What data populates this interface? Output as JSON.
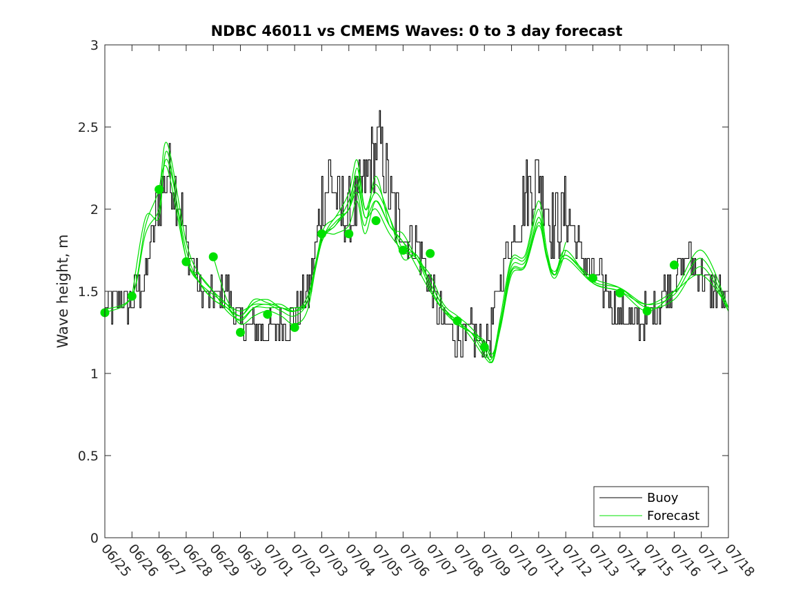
{
  "chart_data": {
    "type": "line",
    "title": "NDBC 46011 vs CMEMS Waves: 0 to 3 day forecast",
    "xlabel": "",
    "ylabel": "Wave height, m",
    "xlim": [
      0,
      23
    ],
    "ylim": [
      0,
      3
    ],
    "yticks": [
      0,
      0.5,
      1,
      1.5,
      2,
      2.5,
      3
    ],
    "ytick_labels": [
      "0",
      "0.5",
      "1",
      "1.5",
      "2",
      "2.5",
      "3"
    ],
    "xtick_labels": [
      "06/25",
      "06/26",
      "06/27",
      "06/28",
      "06/29",
      "06/30",
      "07/01",
      "07/02",
      "07/03",
      "07/04",
      "07/05",
      "07/06",
      "07/07",
      "07/08",
      "07/09",
      "07/10",
      "07/11",
      "07/12",
      "07/13",
      "07/14",
      "07/15",
      "07/16",
      "07/17",
      "07/18"
    ],
    "grid": false,
    "legend": {
      "placement": "bottom-right",
      "entries": [
        "Buoy",
        "Forecast"
      ]
    },
    "colors": {
      "buoy": "#000000",
      "forecast": "#00e000",
      "axis": "#262626"
    },
    "buoy": {
      "name": "Buoy",
      "x": [
        0,
        0.5,
        1,
        1.5,
        2,
        2.3,
        2.6,
        3,
        3.5,
        4,
        4.5,
        5,
        5.5,
        6,
        6.5,
        7,
        7.5,
        8,
        8.3,
        8.6,
        9,
        9.5,
        10,
        10.3,
        10.6,
        11,
        11.5,
        12,
        12.5,
        13,
        13.5,
        14,
        14.3,
        14.6,
        15,
        15.5,
        16,
        16.3,
        16.6,
        17,
        17.5,
        18,
        18.5,
        19,
        19.5,
        20,
        20.5,
        21,
        21.5,
        22,
        22.5,
        23
      ],
      "y": [
        1.4,
        1.45,
        1.42,
        1.6,
        2.1,
        2.2,
        2.15,
        1.8,
        1.5,
        1.45,
        1.5,
        1.3,
        1.3,
        1.25,
        1.3,
        1.35,
        1.5,
        2.05,
        2.2,
        2.0,
        1.95,
        2.1,
        2.4,
        2.3,
        2.0,
        1.85,
        1.8,
        1.5,
        1.3,
        1.2,
        1.25,
        1.15,
        1.3,
        1.6,
        1.8,
        2.1,
        2.2,
        2.0,
        1.9,
        2.0,
        1.75,
        1.6,
        1.5,
        1.35,
        1.3,
        1.35,
        1.45,
        1.6,
        1.7,
        1.6,
        1.5,
        1.4
      ]
    },
    "forecast_runs": [
      {
        "x": [
          0,
          1,
          1.5,
          2,
          2.3,
          3,
          3.5,
          4,
          4.5,
          5,
          5.5,
          6,
          6.5,
          7,
          7.5,
          8,
          8.5,
          9,
          9.3,
          9.6,
          10,
          10.5,
          11,
          11.5,
          12,
          12.5,
          13,
          13.5,
          14,
          14.3,
          14.6,
          15,
          15.5,
          16,
          16.3,
          16.6,
          17
        ],
        "y": [
          1.37,
          1.47,
          1.9,
          2.12,
          2.4,
          1.8,
          1.6,
          1.5,
          1.42,
          1.3,
          1.35,
          1.38,
          1.35,
          1.3,
          1.4,
          1.85,
          1.95,
          2.1,
          2.3,
          2.0,
          2.1,
          1.95,
          1.75,
          1.7,
          1.55,
          1.4,
          1.3,
          1.25,
          1.12,
          1.1,
          1.35,
          1.7,
          1.72,
          2.05,
          1.75,
          1.6,
          1.8
        ]
      },
      {
        "x": [
          0,
          1,
          1.5,
          2,
          2.3,
          3,
          3.5,
          4,
          4.5,
          5,
          5.5,
          6,
          6.5,
          7,
          7.5,
          8,
          8.5,
          9,
          9.3,
          9.6,
          10,
          10.5,
          11,
          11.5,
          12,
          12.5,
          13,
          13.5,
          14,
          14.3,
          14.6,
          15,
          15.5,
          16,
          16.3,
          16.6,
          17
        ],
        "y": [
          1.39,
          1.47,
          1.85,
          2.0,
          2.3,
          1.75,
          1.55,
          1.45,
          1.4,
          1.32,
          1.4,
          1.42,
          1.38,
          1.35,
          1.45,
          1.82,
          1.9,
          2.05,
          2.2,
          1.95,
          2.05,
          1.9,
          1.8,
          1.65,
          1.5,
          1.38,
          1.32,
          1.22,
          1.1,
          1.08,
          1.3,
          1.68,
          1.7,
          2.0,
          1.7,
          1.58,
          1.75
        ]
      },
      {
        "x": [
          1,
          1.5,
          2,
          2.3,
          3,
          3.5,
          4,
          4.5,
          5,
          5.5,
          6,
          6.5,
          7,
          7.5,
          8,
          8.5,
          9,
          9.3,
          9.6,
          10,
          10.5,
          11,
          11.5,
          12,
          12.5,
          13,
          13.5,
          14,
          14.3,
          14.6,
          15,
          15.5,
          16,
          16.3,
          16.6,
          17,
          18,
          19,
          20,
          21,
          22,
          23
        ],
        "y": [
          1.47,
          1.95,
          1.95,
          2.35,
          1.7,
          1.6,
          1.5,
          1.38,
          1.33,
          1.4,
          1.4,
          1.4,
          1.38,
          1.45,
          1.8,
          1.95,
          2.0,
          2.25,
          2.0,
          2.15,
          1.95,
          1.7,
          1.72,
          1.55,
          1.4,
          1.32,
          1.25,
          1.15,
          1.07,
          1.3,
          1.65,
          1.68,
          1.95,
          1.72,
          1.6,
          1.7,
          1.55,
          1.5,
          1.42,
          1.5,
          1.6,
          1.4
        ]
      },
      {
        "x": [
          2,
          2.3,
          3,
          3.5,
          4,
          4.5,
          5,
          5.5,
          6,
          6.5,
          7,
          7.5,
          8,
          8.5,
          9,
          9.3,
          9.6,
          10,
          10.5,
          11,
          11.5,
          12,
          12.5,
          13,
          13.5,
          14,
          14.3,
          14.6,
          15,
          15.5,
          16,
          16.3,
          16.6,
          17,
          18,
          19,
          20,
          21,
          22,
          23
        ],
        "y": [
          2.12,
          2.25,
          1.7,
          1.55,
          1.45,
          1.4,
          1.35,
          1.43,
          1.45,
          1.4,
          1.4,
          1.45,
          1.8,
          1.9,
          2.0,
          2.1,
          1.9,
          2.2,
          1.9,
          1.85,
          1.7,
          1.6,
          1.42,
          1.35,
          1.28,
          1.18,
          1.1,
          1.28,
          1.6,
          1.65,
          1.9,
          1.7,
          1.62,
          1.72,
          1.58,
          1.52,
          1.4,
          1.45,
          1.65,
          1.38
        ]
      },
      {
        "x": [
          3,
          3.5,
          4,
          4.5,
          5,
          5.5,
          6,
          6.5,
          7,
          7.5,
          8,
          8.5,
          9,
          9.3,
          9.6,
          10,
          10.5,
          11,
          11.5,
          12,
          12.5,
          13,
          13.5,
          14,
          14.3,
          14.6,
          15,
          15.5,
          16,
          16.3,
          16.6,
          17,
          18,
          19,
          20,
          21,
          22,
          23
        ],
        "y": [
          1.68,
          1.55,
          1.48,
          1.42,
          1.38,
          1.42,
          1.42,
          1.42,
          1.38,
          1.45,
          1.8,
          1.92,
          2.0,
          2.15,
          1.95,
          2.0,
          1.85,
          1.75,
          1.72,
          1.55,
          1.4,
          1.3,
          1.25,
          1.2,
          1.12,
          1.3,
          1.62,
          1.65,
          1.92,
          1.72,
          1.6,
          1.72,
          1.56,
          1.52,
          1.42,
          1.48,
          1.7,
          1.38
        ]
      },
      {
        "x": [
          4,
          4.5,
          5,
          5.5,
          6,
          6.5,
          7,
          7.5,
          8,
          8.5,
          9,
          9.3,
          9.6,
          10,
          10.5,
          11,
          11.5,
          12,
          12.5,
          13,
          13.5,
          14,
          14.3,
          14.6,
          15,
          15.5,
          16,
          16.3,
          16.6,
          17,
          18,
          19,
          20,
          21,
          22,
          23
        ],
        "y": [
          1.71,
          1.45,
          1.35,
          1.45,
          1.43,
          1.4,
          1.38,
          1.48,
          1.82,
          1.85,
          1.9,
          2.05,
          1.85,
          2.05,
          1.9,
          1.8,
          1.7,
          1.52,
          1.38,
          1.3,
          1.25,
          1.18,
          1.1,
          1.32,
          1.63,
          1.66,
          1.95,
          1.7,
          1.6,
          1.75,
          1.55,
          1.5,
          1.38,
          1.5,
          1.75,
          1.4
        ]
      }
    ],
    "forecast_markers": {
      "name": "Forecast",
      "x": [
        0,
        1,
        2,
        3,
        4,
        5,
        6,
        7,
        8,
        9,
        10,
        11,
        12,
        13,
        14,
        18,
        19,
        20,
        21
      ],
      "y": [
        1.37,
        1.47,
        2.12,
        1.68,
        1.71,
        1.25,
        1.36,
        1.28,
        1.85,
        1.85,
        1.93,
        1.75,
        1.73,
        1.32,
        1.16,
        1.58,
        1.49,
        1.38,
        1.66
      ]
    }
  }
}
